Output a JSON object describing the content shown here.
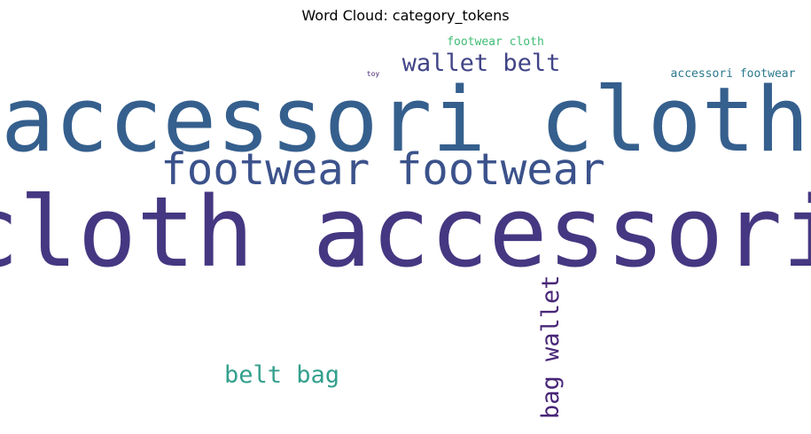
{
  "chart_data": {
    "type": "wordcloud",
    "title": "Word Cloud: category_tokens",
    "words": [
      {
        "text": "cloth accessori",
        "weight": 1.0,
        "color": "#453781",
        "rotate": 0
      },
      {
        "text": "accessori cloth",
        "weight": 0.93,
        "color": "#355f8d",
        "rotate": 0
      },
      {
        "text": "footwear footwear",
        "weight": 0.45,
        "color": "#3b528b",
        "rotate": 0
      },
      {
        "text": "wallet belt",
        "weight": 0.25,
        "color": "#414487",
        "rotate": 0
      },
      {
        "text": "bag wallet",
        "weight": 0.25,
        "color": "#482677",
        "rotate": -90
      },
      {
        "text": "belt bag",
        "weight": 0.25,
        "color": "#33a08d",
        "rotate": 0
      },
      {
        "text": "footwear cloth",
        "weight": 0.13,
        "color": "#3fbc73",
        "rotate": 0
      },
      {
        "text": "accessori footwear",
        "weight": 0.13,
        "color": "#2a788e",
        "rotate": 0
      },
      {
        "text": "toy",
        "weight": 0.07,
        "color": "#482677",
        "rotate": 0
      }
    ]
  }
}
